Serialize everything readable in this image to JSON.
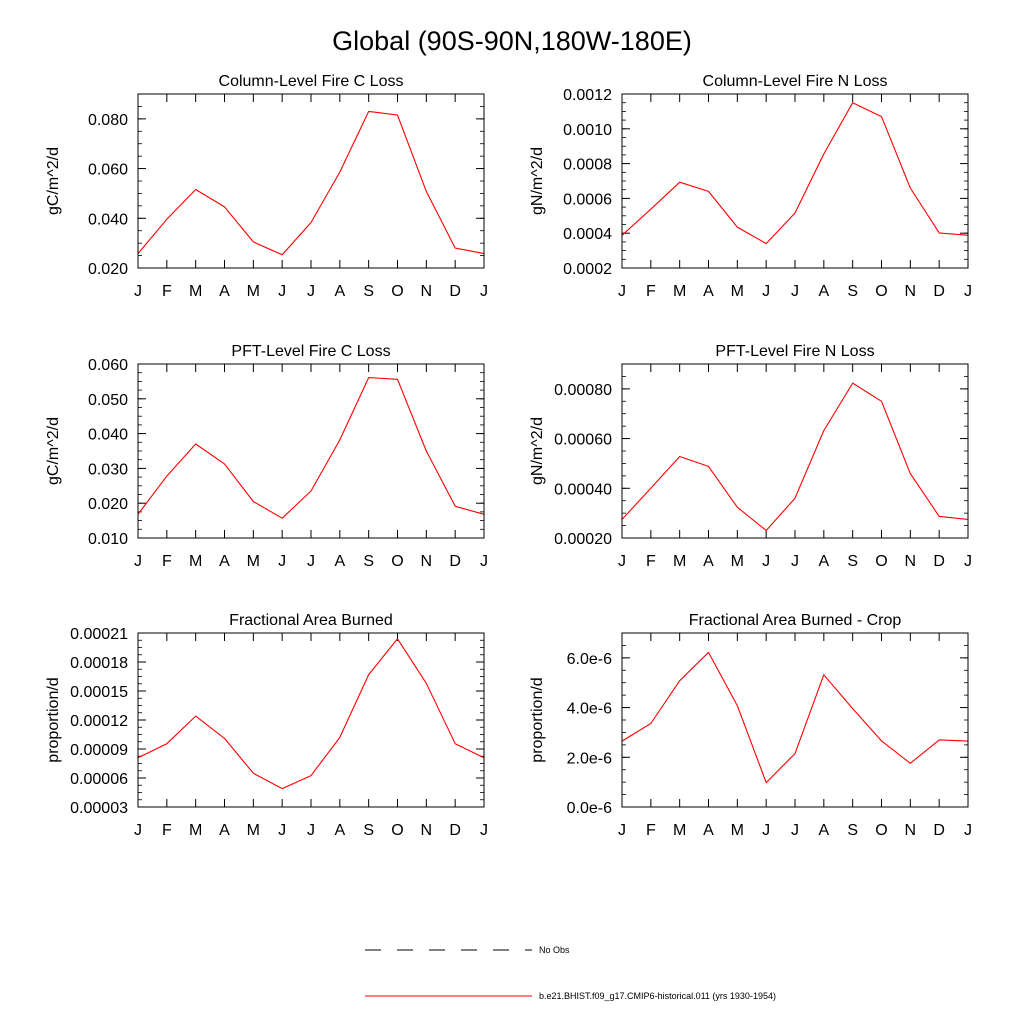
{
  "page": {
    "title": "Global (90S-90N,180W-180E)"
  },
  "line_color": "#ff0000",
  "legend": {
    "entries": [
      {
        "label": "No Obs",
        "style": "dashed",
        "color": "#000000"
      },
      {
        "label": "b.e21.BHIST.f09_g17.CMIP6-historical.011 (yrs 1930-1954)",
        "style": "solid",
        "color": "#ff0000"
      }
    ]
  },
  "chart_data": [
    {
      "type": "line",
      "title": "Column-Level Fire C Loss",
      "ylabel": "gC/m^2/d",
      "categories": [
        "J",
        "F",
        "M",
        "A",
        "M",
        "J",
        "J",
        "A",
        "S",
        "O",
        "N",
        "D",
        "J"
      ],
      "ylim": [
        0.02,
        0.09
      ],
      "yticks": [
        0.02,
        0.04,
        0.06,
        0.08
      ],
      "ytick_labels": [
        "0.020",
        "0.040",
        "0.060",
        "0.080"
      ],
      "yminor": 0.005,
      "series": [
        {
          "values": [
            0.0258,
            0.0396,
            0.0516,
            0.0446,
            0.0305,
            0.0253,
            0.0383,
            0.0586,
            0.083,
            0.0815,
            0.0508,
            0.028,
            0.0258
          ]
        }
      ]
    },
    {
      "type": "line",
      "title": "Column-Level Fire N Loss",
      "ylabel": "gN/m^2/d",
      "categories": [
        "J",
        "F",
        "M",
        "A",
        "M",
        "J",
        "J",
        "A",
        "S",
        "O",
        "N",
        "D",
        "J"
      ],
      "ylim": [
        0.0002,
        0.0012
      ],
      "yticks": [
        0.0002,
        0.0004,
        0.0006,
        0.0008,
        0.001,
        0.0012
      ],
      "ytick_labels": [
        "0.0002",
        "0.0004",
        "0.0006",
        "0.0008",
        "0.0010",
        "0.0012"
      ],
      "yminor": 5e-05,
      "series": [
        {
          "values": [
            0.000388,
            0.000538,
            0.000693,
            0.00064,
            0.000435,
            0.00034,
            0.000516,
            0.000855,
            0.00115,
            0.00107,
            0.00066,
            0.000402,
            0.000388
          ]
        }
      ]
    },
    {
      "type": "line",
      "title": "PFT-Level Fire C Loss",
      "ylabel": "gC/m^2/d",
      "categories": [
        "J",
        "F",
        "M",
        "A",
        "M",
        "J",
        "J",
        "A",
        "S",
        "O",
        "N",
        "D",
        "J"
      ],
      "ylim": [
        0.01,
        0.06
      ],
      "yticks": [
        0.01,
        0.02,
        0.03,
        0.04,
        0.05,
        0.06
      ],
      "ytick_labels": [
        "0.010",
        "0.020",
        "0.030",
        "0.040",
        "0.050",
        "0.060"
      ],
      "yminor": 0.0025,
      "series": [
        {
          "values": [
            0.0168,
            0.0278,
            0.037,
            0.0313,
            0.0205,
            0.0157,
            0.0235,
            0.0382,
            0.0561,
            0.0556,
            0.035,
            0.0191,
            0.0168
          ]
        }
      ]
    },
    {
      "type": "line",
      "title": "PFT-Level Fire N Loss",
      "ylabel": "gN/m^2/d",
      "categories": [
        "J",
        "F",
        "M",
        "A",
        "M",
        "J",
        "J",
        "A",
        "S",
        "O",
        "N",
        "D",
        "J"
      ],
      "ylim": [
        0.0002,
        0.0009
      ],
      "yticks": [
        0.0002,
        0.0004,
        0.0006,
        0.0008
      ],
      "ytick_labels": [
        "0.00020",
        "0.00040",
        "0.00060",
        "0.00080"
      ],
      "yminor": 5e-05,
      "series": [
        {
          "values": [
            0.000275,
            0.0004,
            0.000528,
            0.000488,
            0.000324,
            0.00023,
            0.00036,
            0.000632,
            0.000823,
            0.00075,
            0.000459,
            0.000287,
            0.000275
          ]
        }
      ]
    },
    {
      "type": "line",
      "title": "Fractional Area Burned",
      "ylabel": "proportion/d",
      "categories": [
        "J",
        "F",
        "M",
        "A",
        "M",
        "J",
        "J",
        "A",
        "S",
        "O",
        "N",
        "D",
        "J"
      ],
      "ylim": [
        3e-05,
        0.00021
      ],
      "yticks": [
        3e-05,
        6e-05,
        9e-05,
        0.00012,
        0.00015,
        0.00018,
        0.00021
      ],
      "ytick_labels": [
        "0.00003",
        "0.00006",
        "0.00009",
        "0.00012",
        "0.00015",
        "0.00018",
        "0.00021"
      ],
      "yminor": 7.5e-06,
      "series": [
        {
          "values": [
            8.1e-05,
            9.55e-05,
            0.000124,
            0.000101,
            6.5e-05,
            4.9e-05,
            6.25e-05,
            0.000102,
            0.000167,
            0.000204,
            0.000158,
            9.55e-05,
            8.1e-05
          ]
        }
      ]
    },
    {
      "type": "line",
      "title": "Fractional Area Burned - Crop",
      "ylabel": "proportion/d",
      "categories": [
        "J",
        "F",
        "M",
        "A",
        "M",
        "J",
        "J",
        "A",
        "S",
        "O",
        "N",
        "D",
        "J"
      ],
      "ylim": [
        0.0,
        7e-06
      ],
      "yticks": [
        0.0,
        2e-06,
        4e-06,
        6e-06
      ],
      "ytick_labels": [
        "0.0e-6",
        "2.0e-6",
        "4.0e-6",
        "6.0e-6"
      ],
      "yminor": 5e-07,
      "series": [
        {
          "values": [
            2.65e-06,
            3.36e-06,
            5.08e-06,
            6.22e-06,
            4.08e-06,
            9.8e-07,
            2.15e-06,
            5.32e-06,
            3.96e-06,
            2.66e-06,
            1.76e-06,
            2.7e-06,
            2.65e-06
          ]
        }
      ]
    }
  ]
}
